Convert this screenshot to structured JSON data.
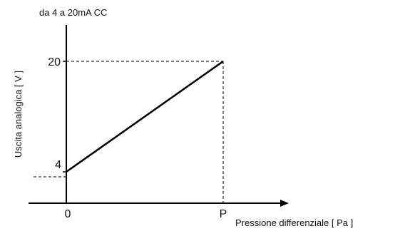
{
  "chart_data": {
    "type": "line",
    "title": "da 4 a 20mA CC",
    "xlabel": "Pressione differenziale [ Pa ]",
    "ylabel": "Uscita analogica [ V ]",
    "x_tick_labels": [
      "0",
      "P"
    ],
    "y_tick_labels": [
      "4",
      "20"
    ],
    "points": [
      {
        "x": "0",
        "y": 4
      },
      {
        "x": "P",
        "y": 20
      }
    ],
    "ylim": [
      0,
      20
    ],
    "grid": false
  },
  "colors": {
    "line": "#000000",
    "axis": "#000000",
    "guide": "#000000"
  }
}
